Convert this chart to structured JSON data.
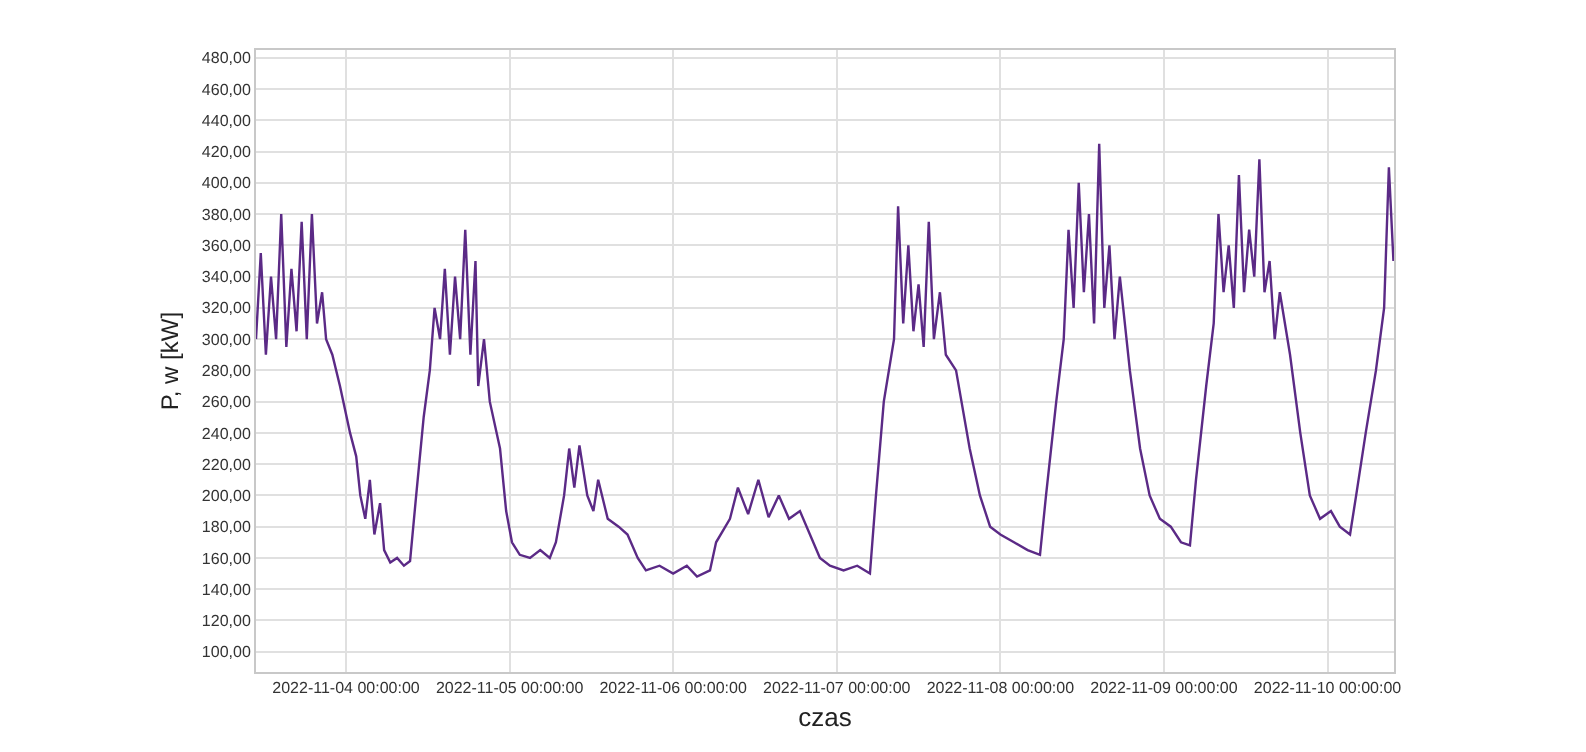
{
  "chart_data": {
    "type": "line",
    "xlabel": "czas",
    "ylabel": "P, w [kW]",
    "xlim": [
      "2022-11-03T10:48",
      "2022-11-10T09:45"
    ],
    "ylim": [
      87,
      485
    ],
    "xticks": [
      {
        "value": "2022-11-04",
        "label": "2022-11-04 00:00:00"
      },
      {
        "value": "2022-11-05",
        "label": "2022-11-05 00:00:00"
      },
      {
        "value": "2022-11-06",
        "label": "2022-11-06 00:00:00"
      },
      {
        "value": "2022-11-07",
        "label": "2022-11-07 00:00:00"
      },
      {
        "value": "2022-11-08",
        "label": "2022-11-08 00:00:00"
      },
      {
        "value": "2022-11-09",
        "label": "2022-11-09 00:00:00"
      },
      {
        "value": "2022-11-10",
        "label": "2022-11-10 00:00:00"
      }
    ],
    "yticks": [
      {
        "value": 100,
        "label": "100,00"
      },
      {
        "value": 120,
        "label": "120,00"
      },
      {
        "value": 140,
        "label": "140,00"
      },
      {
        "value": 160,
        "label": "160,00"
      },
      {
        "value": 180,
        "label": "180,00"
      },
      {
        "value": 200,
        "label": "200,00"
      },
      {
        "value": 220,
        "label": "220,00"
      },
      {
        "value": 240,
        "label": "240,00"
      },
      {
        "value": 260,
        "label": "260,00"
      },
      {
        "value": 280,
        "label": "280,00"
      },
      {
        "value": 300,
        "label": "300,00"
      },
      {
        "value": 320,
        "label": "320,00"
      },
      {
        "value": 340,
        "label": "340,00"
      },
      {
        "value": 360,
        "label": "360,00"
      },
      {
        "value": 380,
        "label": "380,00"
      },
      {
        "value": 400,
        "label": "400,00"
      },
      {
        "value": 420,
        "label": "420,00"
      },
      {
        "value": 440,
        "label": "440,00"
      },
      {
        "value": 460,
        "label": "460,00"
      },
      {
        "value": 480,
        "label": "480,00"
      }
    ],
    "grid": true,
    "marker": "none",
    "line_style": "solid",
    "series": [
      {
        "color": "#5b2a86",
        "x": [
          "2022-11-03T10:48",
          "2022-11-03T11:30",
          "2022-11-03T12:15",
          "2022-11-03T13:00",
          "2022-11-03T13:45",
          "2022-11-03T14:30",
          "2022-11-03T15:15",
          "2022-11-03T16:00",
          "2022-11-03T16:45",
          "2022-11-03T17:30",
          "2022-11-03T18:15",
          "2022-11-03T19:00",
          "2022-11-03T19:45",
          "2022-11-03T20:30",
          "2022-11-03T21:05",
          "2022-11-03T22:00",
          "2022-11-03T23:07",
          "2022-11-04T00:36",
          "2022-11-04T01:30",
          "2022-11-04T02:06",
          "2022-11-04T02:50",
          "2022-11-04T03:30",
          "2022-11-04T04:10",
          "2022-11-04T05:00",
          "2022-11-04T05:36",
          "2022-11-04T06:30",
          "2022-11-04T07:30",
          "2022-11-04T08:30",
          "2022-11-04T09:24",
          "2022-11-04T10:18",
          "2022-11-04T11:24",
          "2022-11-04T12:18",
          "2022-11-04T13:00",
          "2022-11-04T13:48",
          "2022-11-04T14:30",
          "2022-11-04T15:15",
          "2022-11-04T16:00",
          "2022-11-04T16:45",
          "2022-11-04T17:30",
          "2022-11-04T18:15",
          "2022-11-04T19:00",
          "2022-11-04T19:24",
          "2022-11-04T20:15",
          "2022-11-04T21:06",
          "2022-11-04T22:36",
          "2022-11-04T23:30",
          "2022-11-05T00:21",
          "2022-11-05T01:30",
          "2022-11-05T03:00",
          "2022-11-05T04:30",
          "2022-11-05T05:54",
          "2022-11-05T06:48",
          "2022-11-05T08:00",
          "2022-11-05T08:45",
          "2022-11-05T09:30",
          "2022-11-05T10:15",
          "2022-11-05T11:24",
          "2022-11-05T12:18",
          "2022-11-05T13:00",
          "2022-11-05T14:24",
          "2022-11-05T16:00",
          "2022-11-05T17:18",
          "2022-11-05T18:48",
          "2022-11-05T20:00",
          "2022-11-05T22:00",
          "2022-11-06T00:00",
          "2022-11-06T02:00",
          "2022-11-06T03:30",
          "2022-11-06T05:24",
          "2022-11-06T06:18",
          "2022-11-06T08:20",
          "2022-11-06T09:30",
          "2022-11-06T11:00",
          "2022-11-06T12:30",
          "2022-11-06T14:00",
          "2022-11-06T15:30",
          "2022-11-06T17:00",
          "2022-11-06T18:36",
          "2022-11-06T20:04",
          "2022-11-06T21:32",
          "2022-11-06T23:00",
          "2022-11-07T01:00",
          "2022-11-07T03:00",
          "2022-11-07T04:52",
          "2022-11-07T05:45",
          "2022-11-07T06:54",
          "2022-11-07T08:24",
          "2022-11-07T09:00",
          "2022-11-07T09:45",
          "2022-11-07T10:30",
          "2022-11-07T11:15",
          "2022-11-07T12:00",
          "2022-11-07T12:45",
          "2022-11-07T13:30",
          "2022-11-07T14:15",
          "2022-11-07T15:08",
          "2022-11-07T16:00",
          "2022-11-07T17:30",
          "2022-11-07T19:30",
          "2022-11-07T21:00",
          "2022-11-07T22:30",
          "2022-11-08T00:00",
          "2022-11-08T02:00",
          "2022-11-08T04:00",
          "2022-11-08T05:49",
          "2022-11-08T06:42",
          "2022-11-08T08:12",
          "2022-11-08T09:18",
          "2022-11-08T10:00",
          "2022-11-08T10:45",
          "2022-11-08T11:30",
          "2022-11-08T12:15",
          "2022-11-08T13:00",
          "2022-11-08T13:45",
          "2022-11-08T14:30",
          "2022-11-08T15:15",
          "2022-11-08T16:00",
          "2022-11-08T16:45",
          "2022-11-08T17:32",
          "2022-11-08T19:00",
          "2022-11-08T20:30",
          "2022-11-08T21:54",
          "2022-11-08T23:24",
          "2022-11-09T01:00",
          "2022-11-09T02:30",
          "2022-11-09T03:49",
          "2022-11-09T04:42",
          "2022-11-09T06:12",
          "2022-11-09T07:18",
          "2022-11-09T08:00",
          "2022-11-09T08:45",
          "2022-11-09T09:30",
          "2022-11-09T10:15",
          "2022-11-09T11:00",
          "2022-11-09T11:45",
          "2022-11-09T12:30",
          "2022-11-09T13:15",
          "2022-11-09T14:00",
          "2022-11-09T14:45",
          "2022-11-09T15:30",
          "2022-11-09T16:15",
          "2022-11-09T17:00",
          "2022-11-09T18:30",
          "2022-11-09T20:00",
          "2022-11-09T21:24",
          "2022-11-09T22:54",
          "2022-11-10T00:30",
          "2022-11-10T01:48",
          "2022-11-10T03:18",
          "2022-11-10T04:12",
          "2022-11-10T05:36",
          "2022-11-10T07:06",
          "2022-11-10T08:18",
          "2022-11-10T09:00",
          "2022-11-10T09:40"
        ],
        "values": [
          300,
          355,
          290,
          340,
          300,
          380,
          295,
          345,
          305,
          375,
          300,
          380,
          310,
          330,
          300,
          290,
          270,
          240,
          225,
          200,
          185,
          210,
          175,
          195,
          165,
          157,
          160,
          155,
          158,
          200,
          250,
          280,
          320,
          300,
          345,
          290,
          340,
          300,
          370,
          290,
          350,
          270,
          300,
          260,
          230,
          190,
          170,
          162,
          160,
          165,
          160,
          170,
          200,
          230,
          205,
          232,
          200,
          190,
          210,
          185,
          180,
          175,
          160,
          152,
          155,
          150,
          155,
          148,
          152,
          170,
          185,
          205,
          188,
          210,
          186,
          200,
          185,
          190,
          175,
          160,
          155,
          152,
          155,
          150,
          200,
          260,
          300,
          385,
          310,
          360,
          305,
          335,
          295,
          375,
          300,
          330,
          290,
          280,
          230,
          200,
          180,
          175,
          170,
          165,
          162,
          200,
          260,
          300,
          370,
          320,
          400,
          330,
          380,
          310,
          425,
          320,
          360,
          300,
          340,
          280,
          230,
          200,
          185,
          180,
          170,
          168,
          210,
          270,
          310,
          380,
          330,
          360,
          320,
          405,
          330,
          370,
          340,
          415,
          330,
          350,
          300,
          330,
          290,
          240,
          200,
          185,
          190,
          180,
          175,
          200,
          240,
          280,
          320,
          410,
          350
        ]
      }
    ]
  }
}
